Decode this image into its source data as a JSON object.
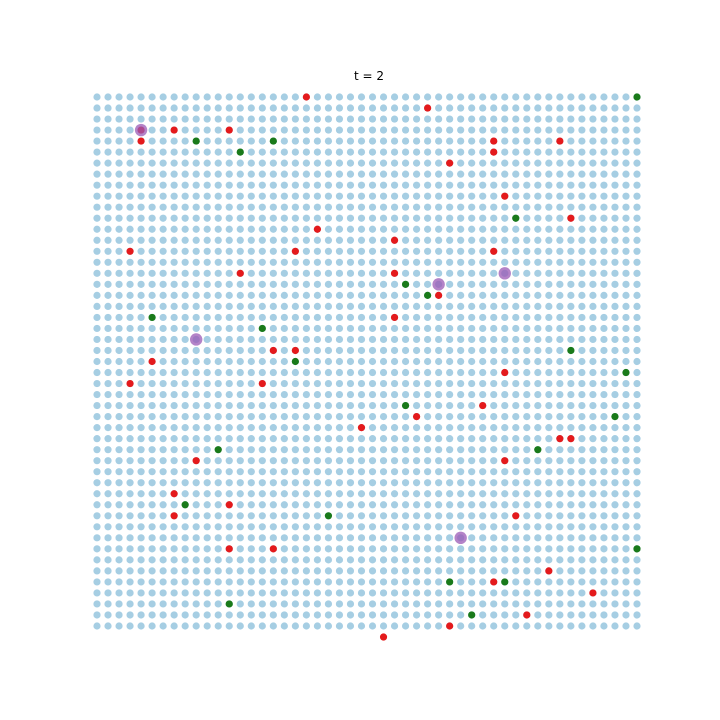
{
  "title": "t = 2",
  "chart_data": {
    "type": "scatter",
    "title": "t = 2",
    "grid_size": [
      50,
      49
    ],
    "axes_visible": false,
    "colors": {
      "background_node": "#a6cee3",
      "red": "#e41a1c",
      "green": "#1a7a1a",
      "purple": "#9b59b6"
    },
    "series": [
      {
        "name": "",
        "color": "red",
        "points": [
          [
            19,
            0
          ],
          [
            30,
            1
          ],
          [
            4,
            3
          ],
          [
            7,
            3
          ],
          [
            12,
            3
          ],
          [
            4,
            4
          ],
          [
            36,
            4
          ],
          [
            42,
            4
          ],
          [
            36,
            5
          ],
          [
            32,
            6
          ],
          [
            37,
            9
          ],
          [
            43,
            11
          ],
          [
            20,
            12
          ],
          [
            27,
            13
          ],
          [
            3,
            14
          ],
          [
            18,
            14
          ],
          [
            36,
            14
          ],
          [
            13,
            16
          ],
          [
            27,
            16
          ],
          [
            31,
            18
          ],
          [
            27,
            20
          ],
          [
            5,
            24
          ],
          [
            16,
            23
          ],
          [
            18,
            23
          ],
          [
            3,
            26
          ],
          [
            15,
            26
          ],
          [
            37,
            25
          ],
          [
            29,
            29
          ],
          [
            35,
            28
          ],
          [
            24,
            30
          ],
          [
            42,
            31
          ],
          [
            43,
            31
          ],
          [
            9,
            33
          ],
          [
            37,
            33
          ],
          [
            7,
            36
          ],
          [
            12,
            37
          ],
          [
            7,
            38
          ],
          [
            38,
            38
          ],
          [
            12,
            41
          ],
          [
            16,
            41
          ],
          [
            41,
            43
          ],
          [
            36,
            44
          ],
          [
            45,
            45
          ],
          [
            39,
            47
          ],
          [
            32,
            48
          ],
          [
            26,
            49
          ]
        ]
      },
      {
        "name": "",
        "color": "green",
        "points": [
          [
            49,
            0
          ],
          [
            9,
            4
          ],
          [
            16,
            4
          ],
          [
            13,
            5
          ],
          [
            38,
            11
          ],
          [
            28,
            17
          ],
          [
            30,
            18
          ],
          [
            5,
            20
          ],
          [
            15,
            21
          ],
          [
            43,
            23
          ],
          [
            18,
            24
          ],
          [
            48,
            25
          ],
          [
            28,
            28
          ],
          [
            47,
            29
          ],
          [
            11,
            32
          ],
          [
            40,
            32
          ],
          [
            8,
            37
          ],
          [
            21,
            38
          ],
          [
            49,
            41
          ],
          [
            32,
            44
          ],
          [
            37,
            44
          ],
          [
            12,
            46
          ],
          [
            34,
            47
          ]
        ]
      },
      {
        "name": "",
        "color": "purple",
        "points": [
          [
            4,
            3
          ],
          [
            31,
            17
          ],
          [
            37,
            16
          ],
          [
            9,
            22
          ],
          [
            33,
            40
          ]
        ]
      }
    ]
  }
}
